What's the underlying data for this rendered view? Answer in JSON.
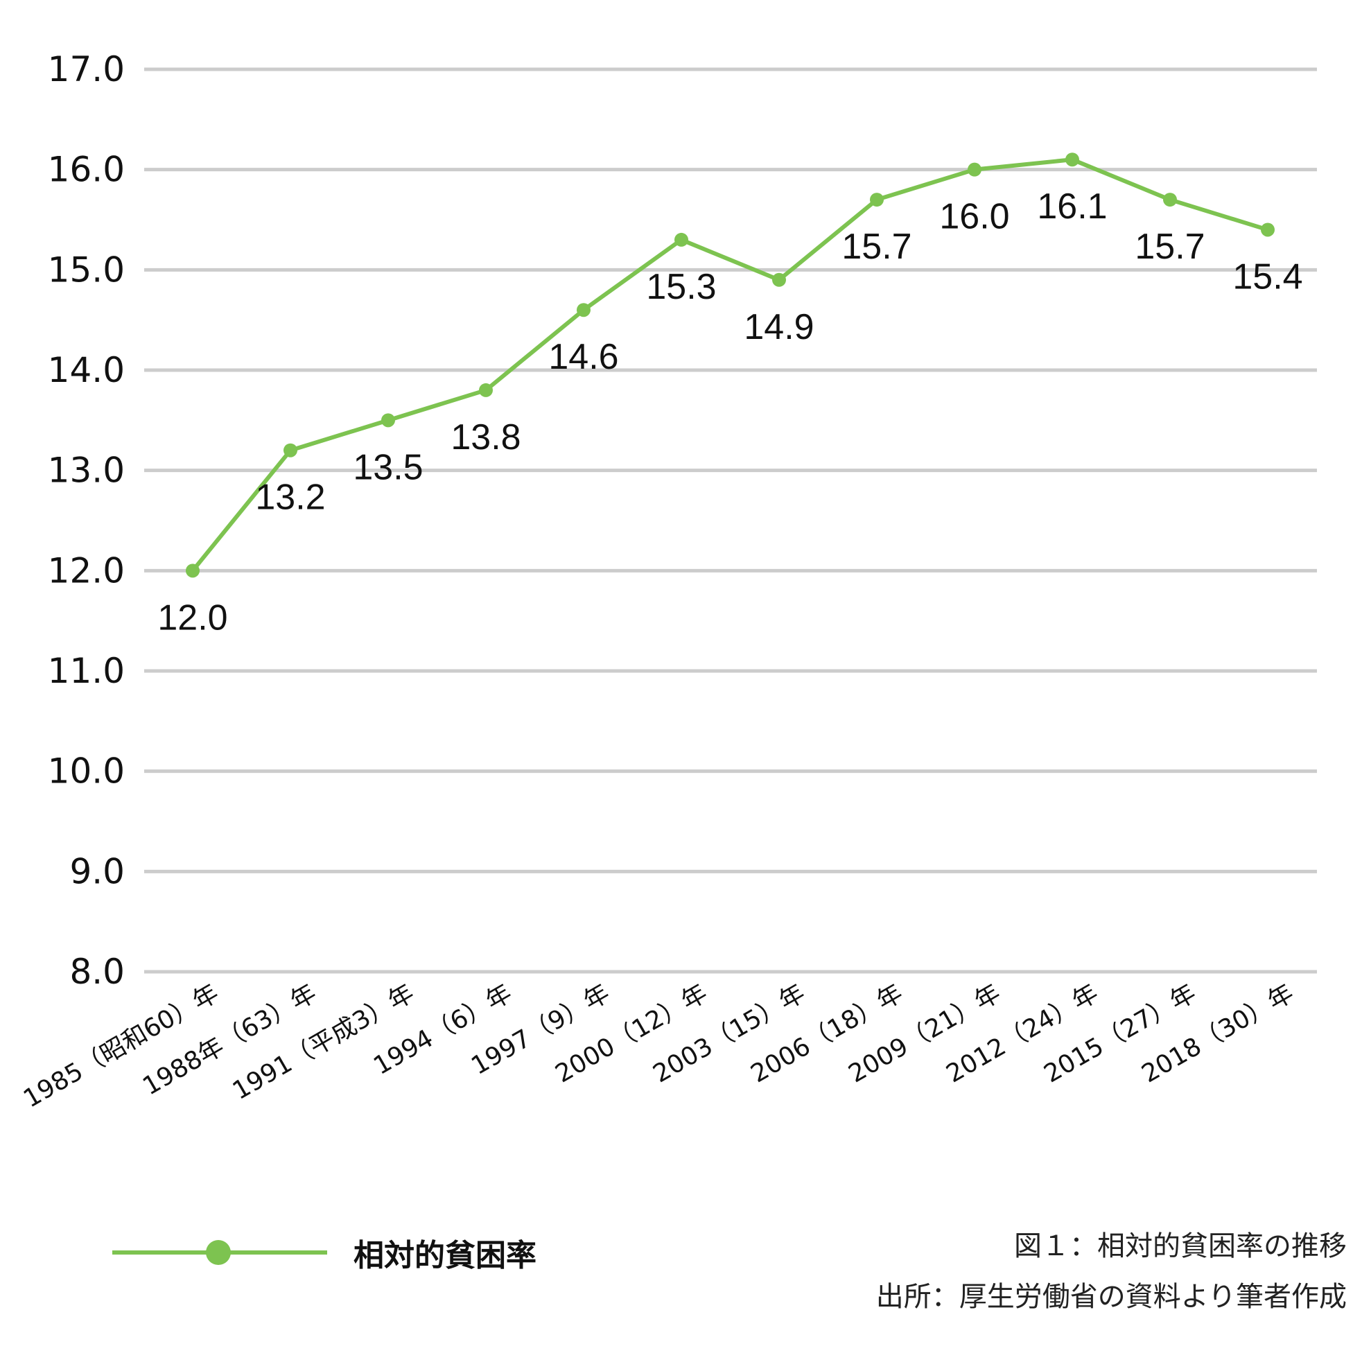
{
  "chart_data": {
    "type": "line",
    "categories": [
      "1985（昭和60）年",
      "1988年（63）年",
      "1991（平成3）年",
      "1994（6）年",
      "1997（9）年",
      "2000（12）年",
      "2003（15）年",
      "2006（18）年",
      "2009（21）年",
      "2012（24）年",
      "2015（27）年",
      "2018（30）年"
    ],
    "series": [
      {
        "name": "相対的貧困率",
        "values": [
          12.0,
          13.2,
          13.5,
          13.8,
          14.6,
          15.3,
          14.9,
          15.7,
          16.0,
          16.1,
          15.7,
          15.4
        ],
        "labels": [
          "12.0",
          "13.2",
          "13.5",
          "13.8",
          "14.6",
          "15.3",
          "14.9",
          "15.7",
          "16.0",
          "16.1",
          "15.7",
          "15.4"
        ],
        "color": "#7dc350"
      }
    ],
    "ylim": [
      8.0,
      17.0
    ],
    "yticks": [
      "8.0",
      "9.0",
      "10.0",
      "11.0",
      "12.0",
      "13.0",
      "14.0",
      "15.0",
      "16.0",
      "17.0"
    ],
    "grid": true,
    "grid_color": "#cccccc",
    "legend_position": "bottom-left",
    "xtick_rotation": "diagonal",
    "data_labels": "below-points"
  },
  "legend": {
    "label": "相対的貧困率"
  },
  "notes": {
    "figure_caption": "図１：相対的貧困率の推移",
    "source": "出所：厚生労働省の資料より筆者作成"
  }
}
